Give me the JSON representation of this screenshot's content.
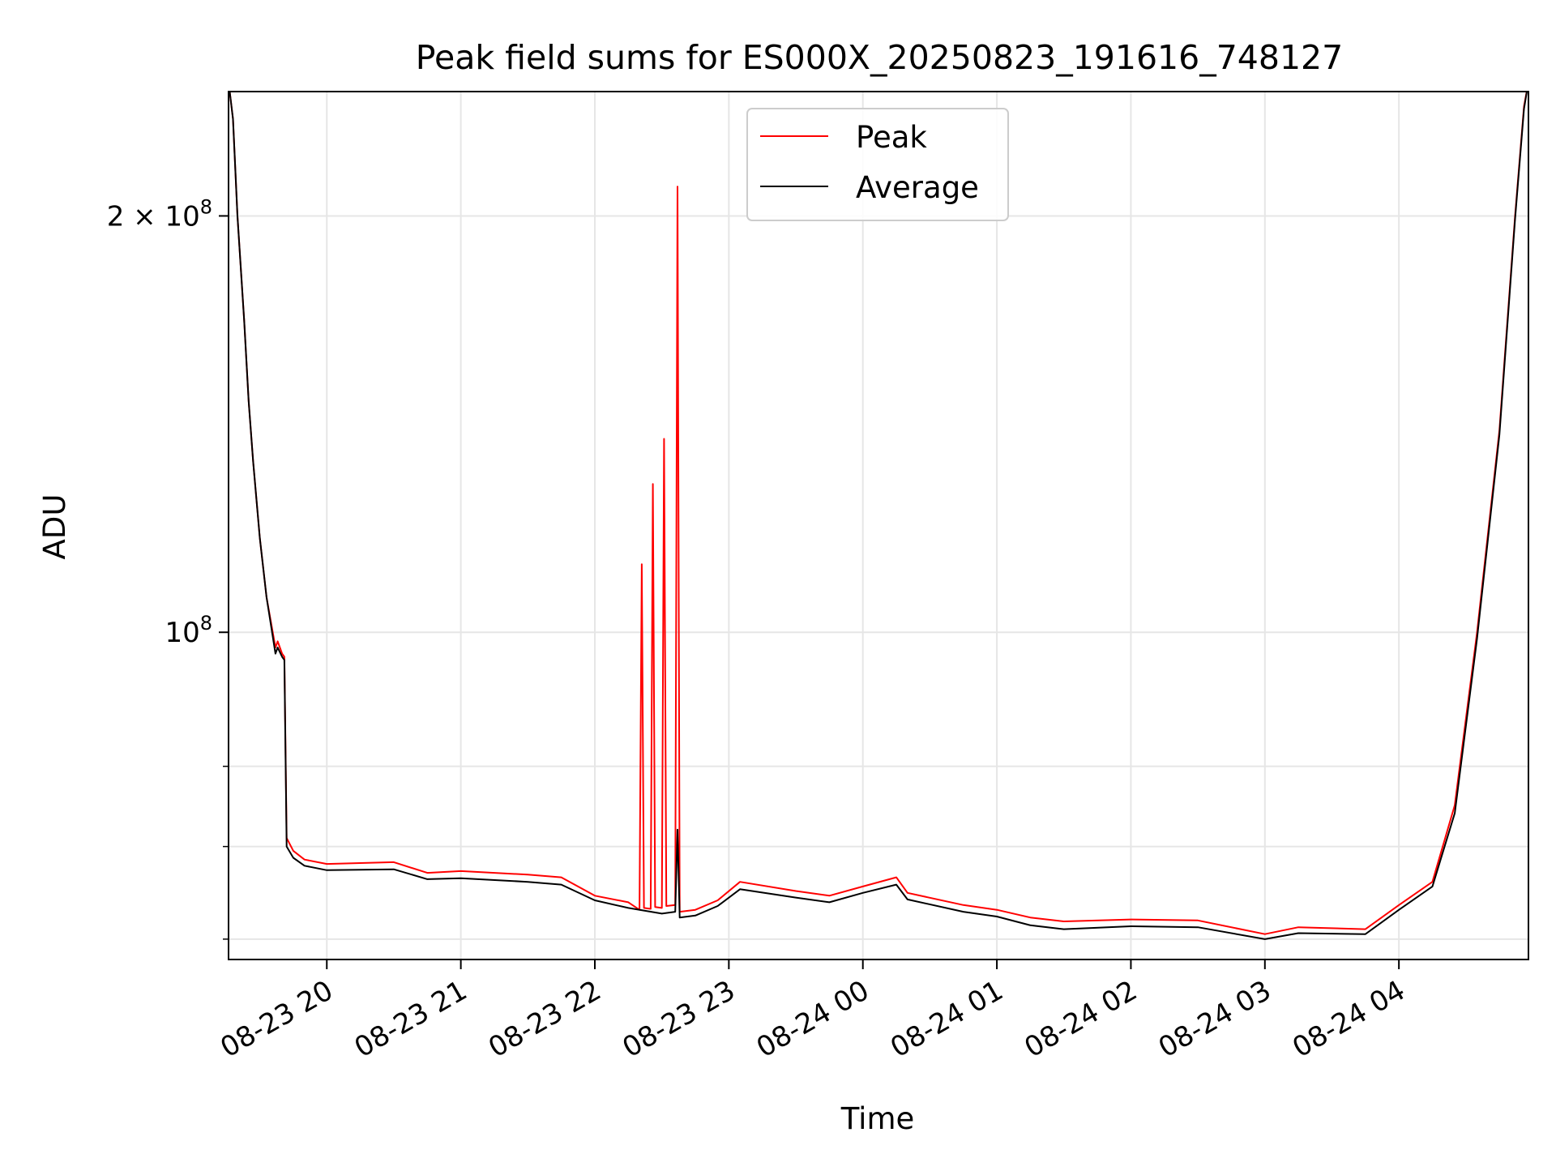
{
  "chart_data": {
    "type": "line",
    "title": "Peak field sums for ES000X_20250823_191616_748127",
    "xlabel": "Time",
    "ylabel": "ADU",
    "y_scale": "log",
    "x_axis": {
      "start": "2025-08-23 19:16",
      "end": "2025-08-24 04:58",
      "tick_labels": [
        "08-23 20",
        "08-23 21",
        "08-23 22",
        "08-23 23",
        "08-24 00",
        "08-24 01",
        "08-24 02",
        "08-24 03",
        "08-24 04"
      ],
      "tick_times": [
        "2025-08-23 20:00",
        "2025-08-23 21:00",
        "2025-08-23 22:00",
        "2025-08-23 23:00",
        "2025-08-24 00:00",
        "2025-08-24 01:00",
        "2025-08-24 02:00",
        "2025-08-24 03:00",
        "2025-08-24 04:00"
      ],
      "tick_label_rotation": "30 degrees"
    },
    "y_axis": {
      "ylim": [
        58000000,
        246000000
      ],
      "major_ticks": [
        {
          "value": 100000000,
          "label_base": "10",
          "label_exp": "8"
        },
        {
          "value": 200000000,
          "label_base": "2 × 10",
          "label_exp": "8"
        }
      ],
      "minor_ticks": [
        60000000,
        70000000,
        80000000
      ]
    },
    "grid": true,
    "legend": {
      "placement": "upper center",
      "entries": [
        {
          "name": "Peak",
          "color": "#ff0000"
        },
        {
          "name": "Average",
          "color": "#000000"
        }
      ]
    },
    "series": [
      {
        "name": "Peak",
        "color": "#ff0000",
        "points": [
          [
            "2025-08-23 19:16",
            250000000
          ],
          [
            "2025-08-23 19:18",
            235000000
          ],
          [
            "2025-08-23 19:20",
            200000000
          ],
          [
            "2025-08-23 19:23",
            168000000
          ],
          [
            "2025-08-23 19:25",
            147000000
          ],
          [
            "2025-08-23 19:27",
            133000000
          ],
          [
            "2025-08-23 19:30",
            117000000
          ],
          [
            "2025-08-23 19:33",
            106000000
          ],
          [
            "2025-08-23 19:37",
            97500000
          ],
          [
            "2025-08-23 19:38",
            98500000
          ],
          [
            "2025-08-23 19:40",
            96500000
          ],
          [
            "2025-08-23 19:41",
            96000000
          ],
          [
            "2025-08-23 19:42",
            71000000
          ],
          [
            "2025-08-23 19:45",
            69500000
          ],
          [
            "2025-08-23 19:50",
            68500000
          ],
          [
            "2025-08-23 20:00",
            68000000
          ],
          [
            "2025-08-23 20:30",
            68200000
          ],
          [
            "2025-08-23 20:45",
            67000000
          ],
          [
            "2025-08-23 21:00",
            67200000
          ],
          [
            "2025-08-23 21:30",
            66800000
          ],
          [
            "2025-08-23 21:45",
            66500000
          ],
          [
            "2025-08-23 22:00",
            64500000
          ],
          [
            "2025-08-23 22:15",
            63800000
          ],
          [
            "2025-08-23 22:20",
            63000000
          ],
          [
            "2025-08-23 22:21",
            112000000
          ],
          [
            "2025-08-23 22:22",
            63200000
          ],
          [
            "2025-08-23 22:25",
            63100000
          ],
          [
            "2025-08-23 22:26",
            128000000
          ],
          [
            "2025-08-23 22:27",
            63300000
          ],
          [
            "2025-08-23 22:30",
            63200000
          ],
          [
            "2025-08-23 22:31",
            138000000
          ],
          [
            "2025-08-23 22:32",
            63400000
          ],
          [
            "2025-08-23 22:36",
            63500000
          ],
          [
            "2025-08-23 22:37",
            210000000
          ],
          [
            "2025-08-23 22:38",
            62800000
          ],
          [
            "2025-08-23 22:45",
            63000000
          ],
          [
            "2025-08-23 22:55",
            64000000
          ],
          [
            "2025-08-23 23:05",
            66000000
          ],
          [
            "2025-08-23 23:30",
            65000000
          ],
          [
            "2025-08-23 23:45",
            64500000
          ],
          [
            "2025-08-24 00:00",
            65500000
          ],
          [
            "2025-08-24 00:15",
            66500000
          ],
          [
            "2025-08-24 00:20",
            64800000
          ],
          [
            "2025-08-24 00:45",
            63500000
          ],
          [
            "2025-08-24 01:00",
            63000000
          ],
          [
            "2025-08-24 01:15",
            62200000
          ],
          [
            "2025-08-24 01:30",
            61800000
          ],
          [
            "2025-08-24 02:00",
            62000000
          ],
          [
            "2025-08-24 02:30",
            61900000
          ],
          [
            "2025-08-24 03:00",
            60500000
          ],
          [
            "2025-08-24 03:15",
            61200000
          ],
          [
            "2025-08-24 03:45",
            61000000
          ],
          [
            "2025-08-24 04:00",
            63500000
          ],
          [
            "2025-08-24 04:15",
            66000000
          ],
          [
            "2025-08-24 04:25",
            75000000
          ],
          [
            "2025-08-24 04:35",
            100000000
          ],
          [
            "2025-08-24 04:45",
            140000000
          ],
          [
            "2025-08-24 04:52",
            200000000
          ],
          [
            "2025-08-24 04:56",
            240000000
          ],
          [
            "2025-08-24 04:58",
            250000000
          ]
        ]
      },
      {
        "name": "Average",
        "color": "#000000",
        "points": [
          [
            "2025-08-23 19:16",
            250000000
          ],
          [
            "2025-08-23 19:18",
            235000000
          ],
          [
            "2025-08-23 19:20",
            200000000
          ],
          [
            "2025-08-23 19:23",
            168000000
          ],
          [
            "2025-08-23 19:25",
            147000000
          ],
          [
            "2025-08-23 19:27",
            133000000
          ],
          [
            "2025-08-23 19:30",
            117000000
          ],
          [
            "2025-08-23 19:33",
            106000000
          ],
          [
            "2025-08-23 19:37",
            96500000
          ],
          [
            "2025-08-23 19:38",
            97500000
          ],
          [
            "2025-08-23 19:40",
            96000000
          ],
          [
            "2025-08-23 19:41",
            95500000
          ],
          [
            "2025-08-23 19:42",
            70000000
          ],
          [
            "2025-08-23 19:45",
            68700000
          ],
          [
            "2025-08-23 19:50",
            67800000
          ],
          [
            "2025-08-23 20:00",
            67300000
          ],
          [
            "2025-08-23 20:30",
            67400000
          ],
          [
            "2025-08-23 20:45",
            66300000
          ],
          [
            "2025-08-23 21:00",
            66400000
          ],
          [
            "2025-08-23 21:30",
            66000000
          ],
          [
            "2025-08-23 21:45",
            65700000
          ],
          [
            "2025-08-23 22:00",
            64000000
          ],
          [
            "2025-08-23 22:15",
            63200000
          ],
          [
            "2025-08-23 22:30",
            62600000
          ],
          [
            "2025-08-23 22:36",
            62800000
          ],
          [
            "2025-08-23 22:37",
            72000000
          ],
          [
            "2025-08-23 22:38",
            62200000
          ],
          [
            "2025-08-23 22:45",
            62400000
          ],
          [
            "2025-08-23 22:55",
            63400000
          ],
          [
            "2025-08-23 23:05",
            65200000
          ],
          [
            "2025-08-23 23:30",
            64300000
          ],
          [
            "2025-08-23 23:45",
            63800000
          ],
          [
            "2025-08-24 00:00",
            64800000
          ],
          [
            "2025-08-24 00:15",
            65700000
          ],
          [
            "2025-08-24 00:20",
            64100000
          ],
          [
            "2025-08-24 00:45",
            62800000
          ],
          [
            "2025-08-24 01:00",
            62300000
          ],
          [
            "2025-08-24 01:15",
            61400000
          ],
          [
            "2025-08-24 01:30",
            61000000
          ],
          [
            "2025-08-24 02:00",
            61300000
          ],
          [
            "2025-08-24 02:30",
            61200000
          ],
          [
            "2025-08-24 03:00",
            60000000
          ],
          [
            "2025-08-24 03:15",
            60600000
          ],
          [
            "2025-08-24 03:45",
            60500000
          ],
          [
            "2025-08-24 04:00",
            63000000
          ],
          [
            "2025-08-24 04:15",
            65500000
          ],
          [
            "2025-08-24 04:25",
            74000000
          ],
          [
            "2025-08-24 04:35",
            99000000
          ],
          [
            "2025-08-24 04:45",
            139000000
          ],
          [
            "2025-08-24 04:52",
            199000000
          ],
          [
            "2025-08-24 04:56",
            239000000
          ],
          [
            "2025-08-24 04:58",
            250000000
          ]
        ]
      }
    ]
  }
}
